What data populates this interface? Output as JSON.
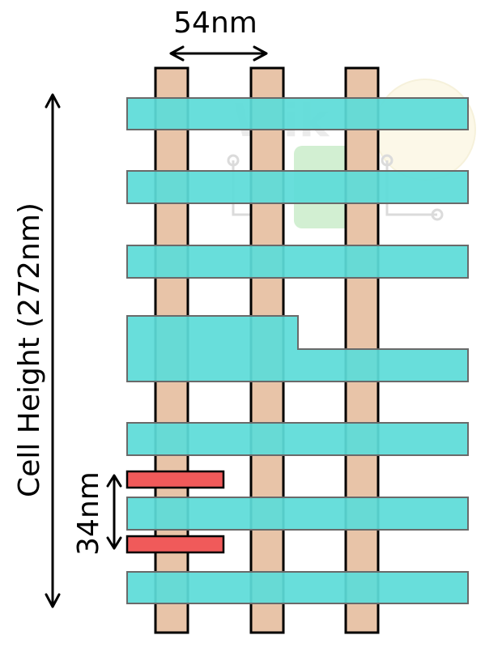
{
  "labels": {
    "gate_pitch": "54nm",
    "metal_pitch": "34nm",
    "cell_height": "Cell Height (272nm)"
  },
  "watermark": {
    "text": "Wik"
  },
  "colors": {
    "gate": "#e8c4a8",
    "metal": "#5cdcd8",
    "metal_stroke": "#6a6a6a",
    "via": "#f05a5a",
    "outline": "#000000",
    "watermark_green": "#7fd27f",
    "watermark_yellow": "#f7ecc0"
  },
  "icons": [
    "double-arrow-horizontal-icon",
    "double-arrow-vertical-icon"
  ]
}
